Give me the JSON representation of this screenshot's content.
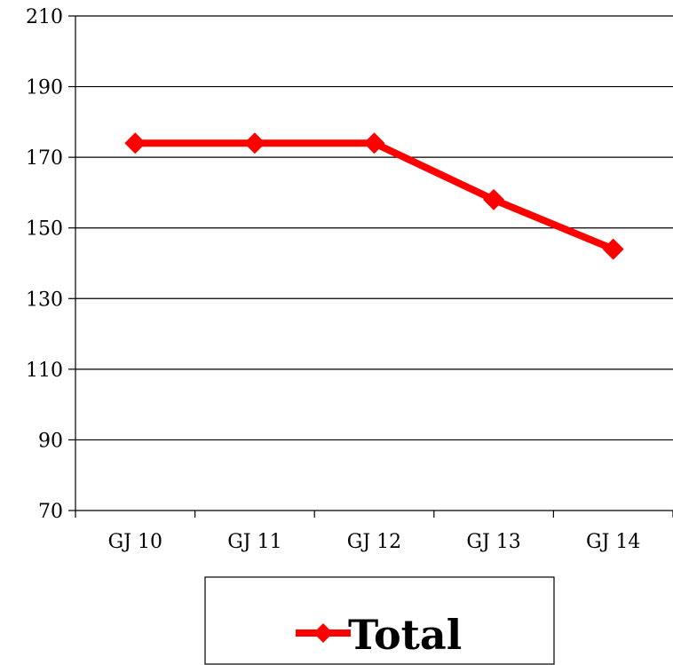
{
  "chart_data": {
    "type": "line",
    "categories": [
      "GJ 10",
      "GJ 11",
      "GJ 12",
      "GJ 13",
      "GJ 14"
    ],
    "series": [
      {
        "name": "Total",
        "values": [
          174,
          174,
          174,
          158,
          144
        ],
        "color": "#ff0000",
        "marker": "diamond"
      }
    ],
    "ylim": [
      70,
      210
    ],
    "yticks": [
      70,
      90,
      110,
      130,
      150,
      170,
      190,
      210
    ],
    "grid": true,
    "legend": "bottom-center"
  }
}
